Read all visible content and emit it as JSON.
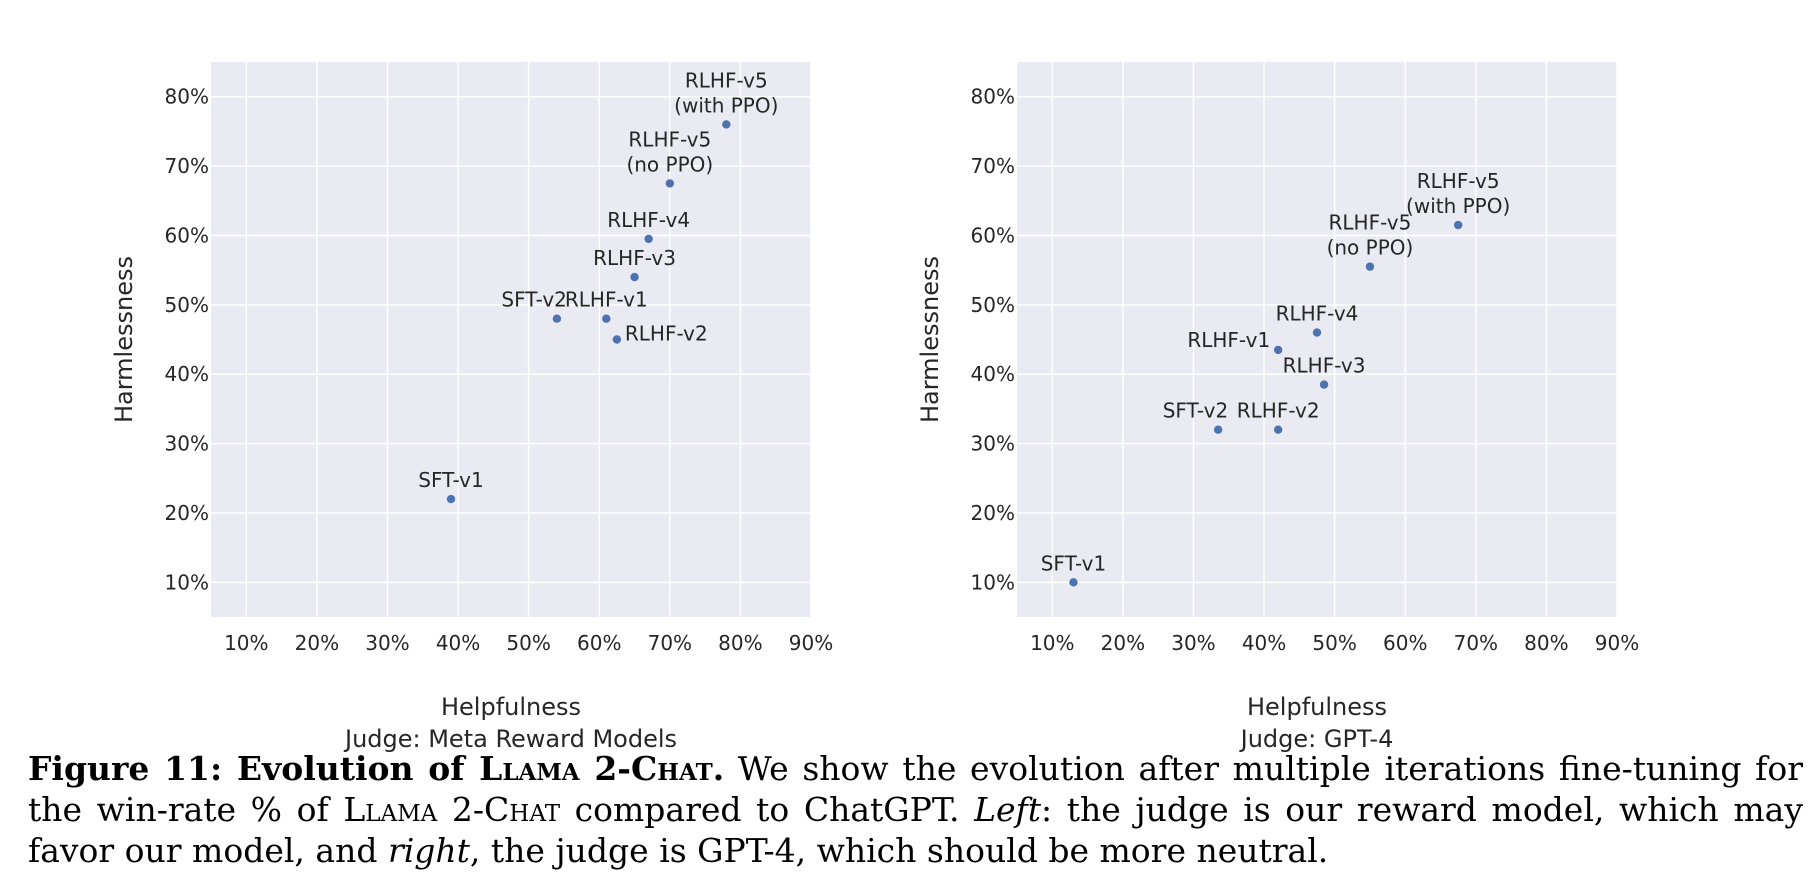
{
  "chart_data": [
    {
      "type": "scatter",
      "xlabel": "Helpfulness",
      "subtitle": "Judge: Meta Reward Models",
      "ylabel": "Harmlessness",
      "xlim": [
        5,
        90
      ],
      "ylim": [
        5,
        85
      ],
      "x_ticks": [
        10,
        20,
        30,
        40,
        50,
        60,
        70,
        80,
        90
      ],
      "y_ticks": [
        10,
        20,
        30,
        40,
        50,
        60,
        70,
        80
      ],
      "tick_format": "{v}%",
      "grid": true,
      "marker_color": "#4c72b0",
      "background_color": "#eaeaf2",
      "points": [
        {
          "label": "SFT-v1",
          "x": 39,
          "y": 22,
          "anchor": "above"
        },
        {
          "label": "SFT-v2",
          "x": 54,
          "y": 48,
          "anchor": "above-left"
        },
        {
          "label": "RLHF-v1",
          "x": 61,
          "y": 48,
          "anchor": "above-center"
        },
        {
          "label": "RLHF-v2",
          "x": 62.5,
          "y": 45,
          "anchor": "right"
        },
        {
          "label": "RLHF-v3",
          "x": 65,
          "y": 54,
          "anchor": "above"
        },
        {
          "label": "RLHF-v4",
          "x": 67,
          "y": 59.5,
          "anchor": "above"
        },
        {
          "label": "RLHF-v5\n(no PPO)",
          "x": 70,
          "y": 67.5,
          "anchor": "above"
        },
        {
          "label": "RLHF-v5\n(with PPO)",
          "x": 78,
          "y": 76,
          "anchor": "above"
        }
      ]
    },
    {
      "type": "scatter",
      "xlabel": "Helpfulness",
      "subtitle": "Judge: GPT-4",
      "ylabel": "Harmlessness",
      "xlim": [
        5,
        90
      ],
      "ylim": [
        5,
        85
      ],
      "x_ticks": [
        10,
        20,
        30,
        40,
        50,
        60,
        70,
        80,
        90
      ],
      "y_ticks": [
        10,
        20,
        30,
        40,
        50,
        60,
        70,
        80
      ],
      "tick_format": "{v}%",
      "grid": true,
      "marker_color": "#4c72b0",
      "background_color": "#eaeaf2",
      "points": [
        {
          "label": "SFT-v1",
          "x": 13,
          "y": 10,
          "anchor": "above"
        },
        {
          "label": "SFT-v2",
          "x": 33.5,
          "y": 32,
          "anchor": "above-left"
        },
        {
          "label": "RLHF-v1",
          "x": 42,
          "y": 43.5,
          "anchor": "left"
        },
        {
          "label": "RLHF-v2",
          "x": 42,
          "y": 32,
          "anchor": "above"
        },
        {
          "label": "RLHF-v3",
          "x": 48.5,
          "y": 38.5,
          "anchor": "above"
        },
        {
          "label": "RLHF-v4",
          "x": 47.5,
          "y": 46,
          "anchor": "above"
        },
        {
          "label": "RLHF-v5\n(no PPO)",
          "x": 55,
          "y": 55.5,
          "anchor": "above"
        },
        {
          "label": "RLHF-v5\n(with PPO)",
          "x": 67.5,
          "y": 61.5,
          "anchor": "above"
        }
      ]
    }
  ],
  "caption": {
    "figure_label": "Figure 11: Evolution of",
    "model_name": "Llama 2-Chat",
    "label_end": ".",
    "text1": " We show the evolution after multiple iterations fine-tuning for the win-rate % of ",
    "model_name_2": "Llama 2-Chat",
    "text2": " compared to ChatGPT. ",
    "left_word": "Left",
    "text3": ": the judge is our reward model, which may favor our model, and ",
    "right_word": "right",
    "text4": ", the judge is GPT-4, which should be more neutral."
  }
}
